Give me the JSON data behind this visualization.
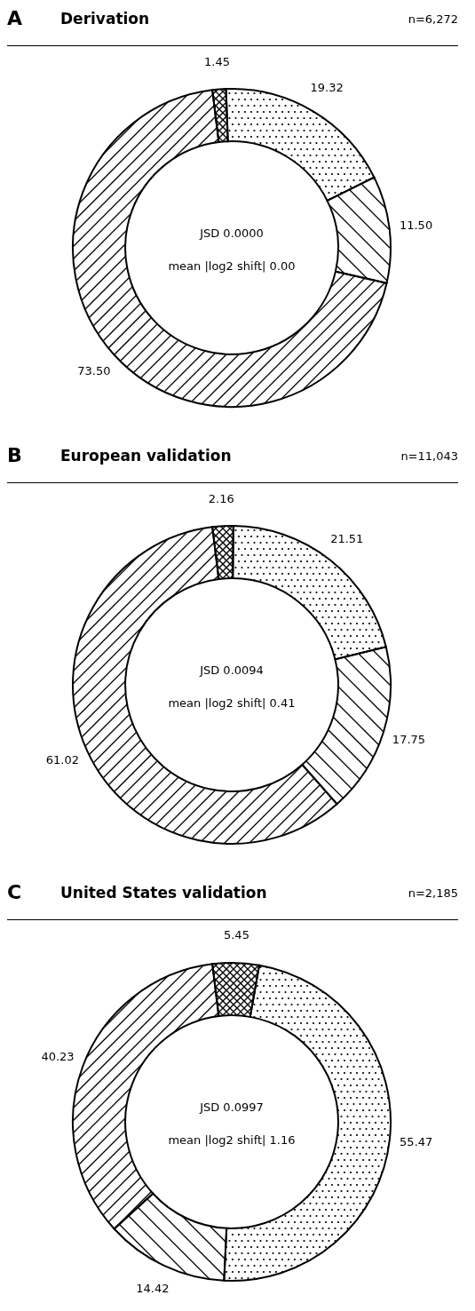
{
  "chart_data": [
    {
      "type": "donut",
      "title": "Derivation",
      "subtitle": "n=6,272",
      "annotations": [
        "A",
        "JSD 0.0000",
        "mean |log2 shift| 0.00"
      ],
      "categories": [
        null,
        null,
        null,
        null
      ],
      "values": [
        1.45,
        19.32,
        11.5,
        73.5
      ],
      "value_labels": [
        "1.45",
        "19.32",
        "11.50",
        "73.50"
      ],
      "colors": [
        "#ffffff",
        "#ffffff",
        "#ffffff",
        "#ffffff"
      ],
      "legend": false
    },
    {
      "type": "donut",
      "title": "European validation",
      "subtitle": "n=11,043",
      "annotations": [
        "B",
        "JSD 0.0094",
        "mean |log2 shift| 0.41"
      ],
      "categories": [
        null,
        null,
        null,
        null
      ],
      "values": [
        2.16,
        21.51,
        17.75,
        61.02
      ],
      "value_labels": [
        "2.16",
        "21.51",
        "17.75",
        "61.02"
      ],
      "colors": [
        "#ffffff",
        "#ffffff",
        "#ffffff",
        "#ffffff"
      ],
      "legend": false
    },
    {
      "type": "donut",
      "title": "United States validation",
      "subtitle": "n=2,185",
      "annotations": [
        "C",
        "JSD 0.0997",
        "mean |log2 shift| 1.16"
      ],
      "categories": [
        null,
        null,
        null,
        null
      ],
      "values": [
        5.45,
        55.47,
        14.42,
        40.23
      ],
      "value_labels": [
        "5.45",
        "55.47",
        "14.42",
        "40.23"
      ],
      "colors": [
        "#ffffff",
        "#ffffff",
        "#ffffff",
        "#ffffff"
      ],
      "legend": false
    }
  ]
}
